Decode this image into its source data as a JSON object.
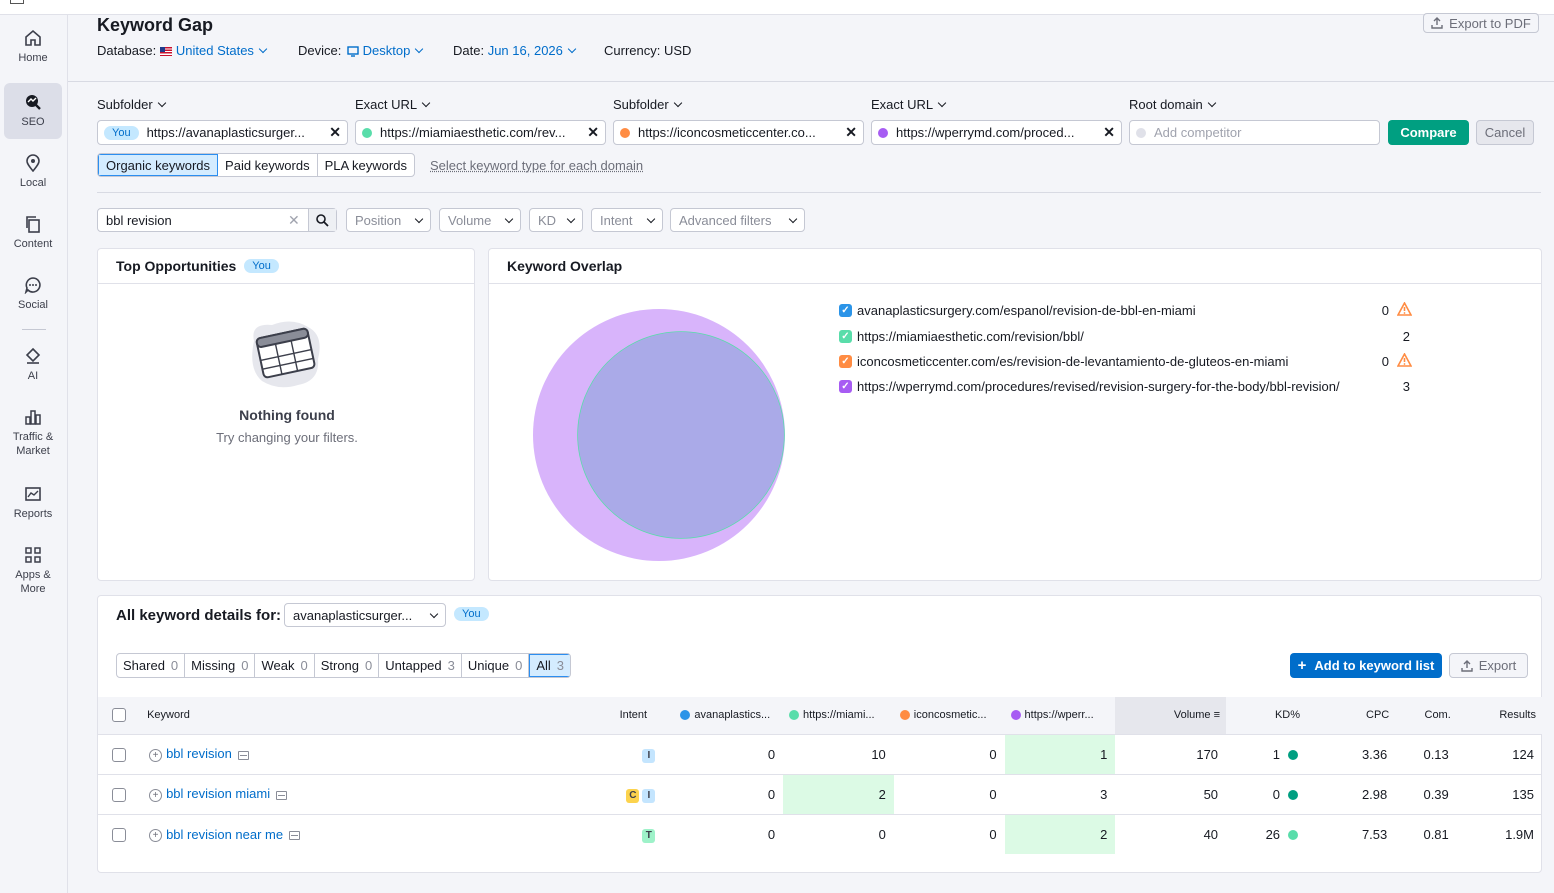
{
  "sidebar": {
    "items": [
      {
        "label": "Home",
        "icon": "home-icon"
      },
      {
        "label": "SEO",
        "icon": "seo-icon",
        "active": true
      },
      {
        "label": "Local",
        "icon": "location-pin-icon"
      },
      {
        "label": "Content",
        "icon": "content-icon"
      },
      {
        "label": "Social",
        "icon": "chat-bubble-icon"
      },
      {
        "label": "AI",
        "icon": "ai-icon"
      },
      {
        "label": "Traffic & Market",
        "icon": "bar-chart-icon"
      },
      {
        "label": "Reports",
        "icon": "reports-icon"
      },
      {
        "label": "Apps & More",
        "icon": "apps-grid-icon"
      }
    ]
  },
  "header": {
    "title": "Keyword Gap",
    "export_pdf": "Export to PDF",
    "database_label": "Database:",
    "database_value": "United States",
    "device_label": "Device:",
    "device_value": "Desktop",
    "date_label": "Date:",
    "date_value": "Jun 16, 2026",
    "currency_label": "Currency:",
    "currency_value": "USD"
  },
  "domains": [
    {
      "type": "Subfolder",
      "value": "https://avanaplasticsurger...",
      "you": "You",
      "color": ""
    },
    {
      "type": "Exact URL",
      "value": "https://miamiaesthetic.com/rev...",
      "color": "#59ddaa"
    },
    {
      "type": "Subfolder",
      "value": "https://iconcosmeticcenter.co...",
      "color": "#ff8c43"
    },
    {
      "type": "Exact URL",
      "value": "https://wperrymd.com/proced...",
      "color": "#a75cf3"
    },
    {
      "type": "Root domain",
      "placeholder": "Add competitor",
      "color": "#e0e1e9"
    }
  ],
  "actions": {
    "compare": "Compare",
    "cancel": "Cancel"
  },
  "keyword_types": [
    "Organic keywords",
    "Paid keywords",
    "PLA keywords"
  ],
  "select_type_link": "Select keyword type for each domain",
  "filters": {
    "search_value": "bbl revision",
    "buttons": [
      "Position",
      "Volume",
      "KD",
      "Intent",
      "Advanced filters"
    ]
  },
  "top_opportunities": {
    "title": "Top Opportunities",
    "badge": "You",
    "empty_title": "Nothing found",
    "empty_sub": "Try changing your filters."
  },
  "overlap": {
    "title": "Keyword Overlap",
    "legend": [
      {
        "label": "avanaplasticsurgery.com/espanol/revision-de-bbl-en-miami",
        "count": "0",
        "color": "#2b94e8",
        "warn": true
      },
      {
        "label": "https://miamiaesthetic.com/revision/bbl/",
        "count": "2",
        "color": "#59ddaa",
        "warn": false
      },
      {
        "label": "iconcosmeticcenter.com/es/revision-de-levantamiento-de-gluteos-en-miami",
        "count": "0",
        "color": "#ff8c43",
        "warn": true
      },
      {
        "label": "https://wperrymd.com/procedures/revised/revision-surgery-for-the-body/bbl-revision/",
        "count": "3",
        "color": "#a75cf3",
        "warn": false
      }
    ]
  },
  "details": {
    "title": "All keyword details for:",
    "selected_domain": "avanaplasticsurger...",
    "badge": "You",
    "tabs": [
      {
        "label": "Shared",
        "count": "0"
      },
      {
        "label": "Missing",
        "count": "0"
      },
      {
        "label": "Weak",
        "count": "0"
      },
      {
        "label": "Strong",
        "count": "0"
      },
      {
        "label": "Untapped",
        "count": "3"
      },
      {
        "label": "Unique",
        "count": "0"
      },
      {
        "label": "All",
        "count": "3",
        "selected": true
      }
    ],
    "add_button": "Add to keyword list",
    "export_button": "Export",
    "columns": {
      "keyword": "Keyword",
      "intent": "Intent",
      "d1": "avanaplastics...",
      "d2": "https://miami...",
      "d3": "iconcosmetic...",
      "d4": "https://wperr...",
      "volume": "Volume",
      "kd": "KD%",
      "cpc": "CPC",
      "com": "Com.",
      "results": "Results"
    },
    "rows": [
      {
        "keyword": "bbl revision",
        "intents": [
          "I"
        ],
        "d1": "0",
        "d2": "10",
        "d3": "0",
        "d4": "1",
        "best": 4,
        "volume": "170",
        "kd": "1",
        "kd_color": "#009f81",
        "cpc": "3.36",
        "com": "0.13",
        "results": "124"
      },
      {
        "keyword": "bbl revision miami",
        "intents": [
          "C",
          "I"
        ],
        "d1": "0",
        "d2": "2",
        "d3": "0",
        "d4": "3",
        "best": 2,
        "volume": "50",
        "kd": "0",
        "kd_color": "#009f81",
        "cpc": "2.98",
        "com": "0.39",
        "results": "135"
      },
      {
        "keyword": "bbl revision near me",
        "intents": [
          "T"
        ],
        "d1": "0",
        "d2": "0",
        "d3": "0",
        "d4": "2",
        "best": 4,
        "volume": "40",
        "kd": "26",
        "kd_color": "#59ddaa",
        "cpc": "7.53",
        "com": "0.81",
        "results": "1.9M"
      }
    ]
  }
}
